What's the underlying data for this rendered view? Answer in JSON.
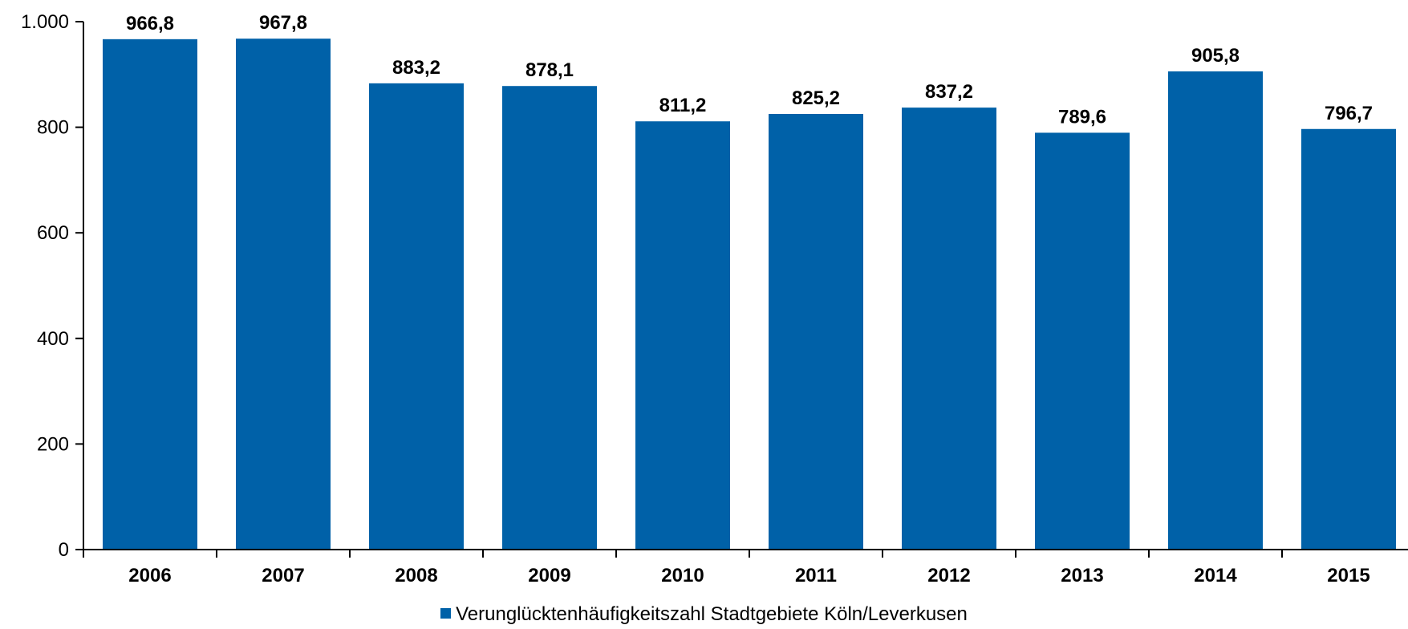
{
  "colors": {
    "bar": "#0061a8",
    "axis": "#000000"
  },
  "chart_data": {
    "type": "bar",
    "categories": [
      "2006",
      "2007",
      "2008",
      "2009",
      "2010",
      "2011",
      "2012",
      "2013",
      "2014",
      "2015"
    ],
    "series": [
      {
        "name": "Verunglücktenhäufigkeitszahl Stadtgebiete Köln/Leverkusen",
        "values": [
          966.8,
          967.8,
          883.2,
          878.1,
          811.2,
          825.2,
          837.2,
          789.6,
          905.8,
          796.7
        ],
        "labels": [
          "966,8",
          "967,8",
          "883,2",
          "878,1",
          "811,2",
          "825,2",
          "837,2",
          "789,6",
          "905,8",
          "796,7"
        ]
      }
    ],
    "ylim": [
      0,
      1000
    ],
    "yticks": [
      0,
      200,
      400,
      600,
      800,
      1000
    ],
    "ytick_labels": [
      "0",
      "200",
      "400",
      "600",
      "800",
      "1.000"
    ],
    "grid": false,
    "legend": "bottom-center"
  }
}
